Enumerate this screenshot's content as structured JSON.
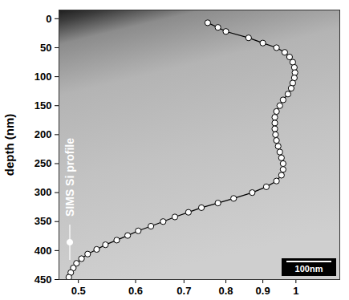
{
  "chart_data": {
    "type": "line",
    "ylabel": "depth (nm)",
    "log": "x",
    "grid": false,
    "legend": "left",
    "annotations": [
      "100nm"
    ],
    "xlim": [
      0.47,
      1.15
    ],
    "xticks": [
      0.5,
      0.6,
      0.7,
      0.8,
      0.9,
      1
    ],
    "ylim": [
      -15,
      450
    ],
    "yticks": [
      0,
      50,
      100,
      150,
      200,
      250,
      300,
      350,
      400,
      450
    ],
    "y": [
      7,
      15,
      22,
      33,
      42,
      50,
      58,
      66,
      75,
      84,
      93,
      102,
      111,
      120,
      130,
      140,
      150,
      160,
      170,
      180,
      190,
      200,
      210,
      220,
      230,
      240,
      250,
      260,
      270,
      280,
      290,
      300,
      310,
      318,
      326,
      334,
      342,
      350,
      358,
      366,
      374,
      382,
      390,
      398,
      406,
      414,
      422,
      430,
      438,
      446
    ],
    "series": [
      {
        "name": "SIMS Si profile",
        "color": "#000000",
        "marker": "circle",
        "line_style": "solid",
        "values": [
          0.755,
          0.78,
          0.8,
          0.86,
          0.9,
          0.94,
          0.965,
          0.98,
          0.99,
          0.995,
          0.997,
          0.995,
          0.99,
          0.985,
          0.975,
          0.96,
          0.95,
          0.94,
          0.935,
          0.935,
          0.935,
          0.937,
          0.94,
          0.945,
          0.95,
          0.955,
          0.96,
          0.96,
          0.955,
          0.94,
          0.91,
          0.87,
          0.82,
          0.78,
          0.74,
          0.71,
          0.68,
          0.655,
          0.63,
          0.605,
          0.585,
          0.565,
          0.545,
          0.53,
          0.515,
          0.505,
          0.497,
          0.492,
          0.488,
          0.485
        ]
      }
    ]
  }
}
